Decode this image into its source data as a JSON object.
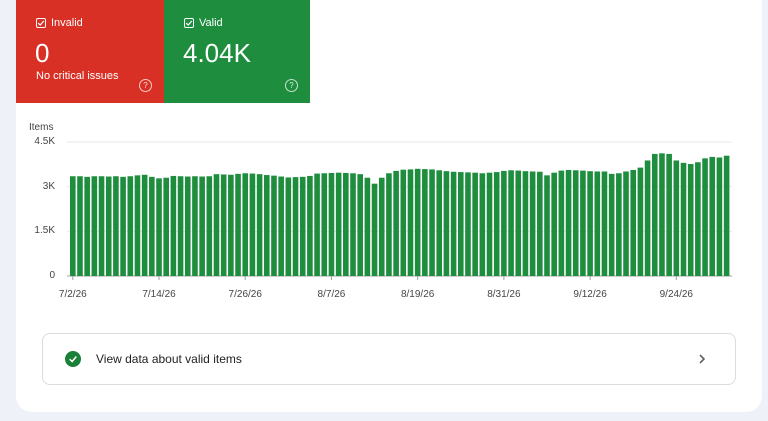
{
  "tiles": {
    "invalid": {
      "label": "Invalid",
      "value": "0",
      "sub": "No critical issues",
      "color": "#d93025"
    },
    "valid": {
      "label": "Valid",
      "value": "4.04K",
      "color": "#1e8e3e"
    }
  },
  "link": {
    "label": "View data about valid items"
  },
  "chart_data": {
    "type": "bar",
    "ylabel": "Items",
    "y_tick_labels": [
      "4.5K",
      "3K",
      "1.5K",
      "0"
    ],
    "y_tick_values": [
      4500,
      3000,
      1500,
      0
    ],
    "ylim": [
      0,
      4500
    ],
    "x_tick_labels": [
      "7/2/26",
      "7/14/26",
      "7/26/26",
      "8/7/26",
      "8/19/26",
      "8/31/26",
      "9/12/26",
      "9/24/26"
    ],
    "x_tick_indices": [
      0,
      12,
      24,
      36,
      48,
      60,
      72,
      84
    ],
    "bar_color": "#1e8e3e",
    "grid": true,
    "x_start": "7/2/26",
    "values": [
      3350,
      3350,
      3330,
      3350,
      3350,
      3340,
      3350,
      3330,
      3350,
      3380,
      3400,
      3330,
      3280,
      3300,
      3360,
      3350,
      3340,
      3350,
      3340,
      3350,
      3420,
      3410,
      3400,
      3430,
      3450,
      3440,
      3420,
      3390,
      3370,
      3340,
      3310,
      3320,
      3330,
      3360,
      3440,
      3450,
      3460,
      3470,
      3460,
      3450,
      3420,
      3300,
      3100,
      3300,
      3450,
      3530,
      3570,
      3580,
      3600,
      3590,
      3580,
      3550,
      3520,
      3500,
      3490,
      3480,
      3470,
      3450,
      3470,
      3490,
      3530,
      3550,
      3540,
      3520,
      3510,
      3500,
      3380,
      3470,
      3540,
      3560,
      3550,
      3540,
      3520,
      3510,
      3510,
      3430,
      3450,
      3510,
      3560,
      3640,
      3880,
      4100,
      4120,
      4100,
      3880,
      3800,
      3760,
      3820,
      3950,
      4000,
      3980,
      4040
    ]
  }
}
